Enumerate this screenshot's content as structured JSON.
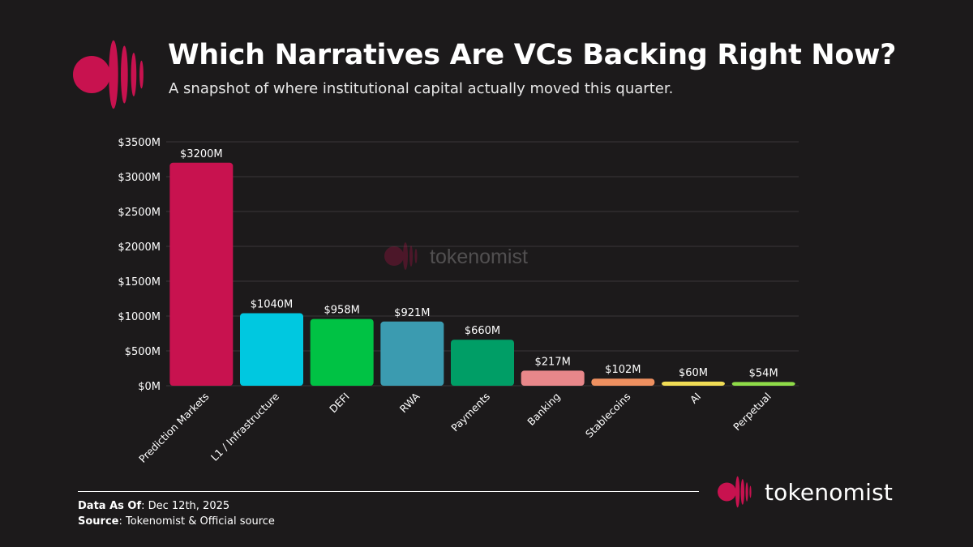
{
  "header": {
    "title": "Which Narratives Are VCs Backing Right Now?",
    "subtitle": "A snapshot of where institutional capital actually moved this quarter."
  },
  "watermark": {
    "text": "tokenomist"
  },
  "footer": {
    "date_label": "Data As Of",
    "date_value": ": Dec 12th, 2025",
    "source_label": "Source",
    "source_value": ": Tokenomist & Official source"
  },
  "brand": {
    "name": "tokenomist"
  },
  "colors": {
    "background": "#1c1a1b",
    "brand": "#c8124f",
    "grid": "#3a3739",
    "text": "#ffffff"
  },
  "chart_data": {
    "type": "bar",
    "title": "Which Narratives Are VCs Backing Right Now?",
    "xlabel": "",
    "ylabel": "",
    "ylim": [
      0,
      3500
    ],
    "yticks": [
      0,
      500,
      1000,
      1500,
      2000,
      2500,
      3000,
      3500
    ],
    "ytick_labels": [
      "$0M",
      "$500M",
      "$1000M",
      "$1500M",
      "$2000M",
      "$2500M",
      "$3000M",
      "$3500M"
    ],
    "categories": [
      "Prediction Markets",
      "L1 / Infrastructure",
      "DEFI",
      "RWA",
      "Payments",
      "Banking",
      "Stablecoins",
      "AI",
      "Perpetual"
    ],
    "values": [
      3200,
      1040,
      958,
      921,
      660,
      217,
      102,
      60,
      54
    ],
    "value_labels": [
      "$3200M",
      "$1040M",
      "$958M",
      "$921M",
      "$660M",
      "$217M",
      "$102M",
      "$60M",
      "$54M"
    ],
    "bar_colors": [
      "#c8124f",
      "#00c8e0",
      "#00c244",
      "#3b9bb0",
      "#009e66",
      "#e8878a",
      "#ee9060",
      "#f0dc55",
      "#8fdc48"
    ],
    "grid": true
  }
}
